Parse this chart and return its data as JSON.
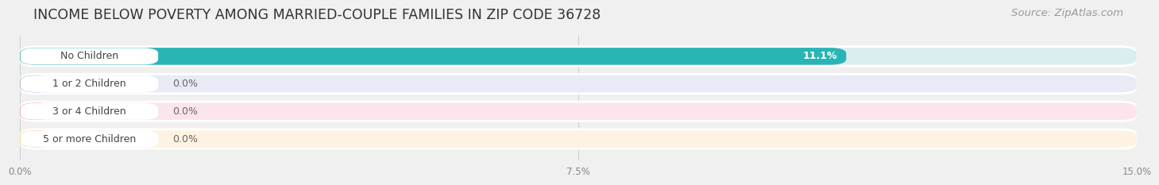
{
  "title": "INCOME BELOW POVERTY AMONG MARRIED-COUPLE FAMILIES IN ZIP CODE 36728",
  "source": "Source: ZipAtlas.com",
  "categories": [
    "No Children",
    "1 or 2 Children",
    "3 or 4 Children",
    "5 or more Children"
  ],
  "values": [
    11.1,
    0.0,
    0.0,
    0.0
  ],
  "bar_colors": [
    "#29b5b5",
    "#9da8d8",
    "#f090a0",
    "#f5c88a"
  ],
  "bar_bg_colors": [
    "#daeef0",
    "#e8eaf6",
    "#fce4ec",
    "#fef3e2"
  ],
  "xlim": [
    0,
    15.0
  ],
  "xticks": [
    0.0,
    7.5,
    15.0
  ],
  "xticklabels": [
    "0.0%",
    "7.5%",
    "15.0%"
  ],
  "background_color": "#f0f0f0",
  "row_bg_color": "#ffffff",
  "title_fontsize": 12.5,
  "source_fontsize": 9.5,
  "bar_height": 0.62,
  "bar_label_fontsize": 9,
  "value_label_fontsize": 9
}
